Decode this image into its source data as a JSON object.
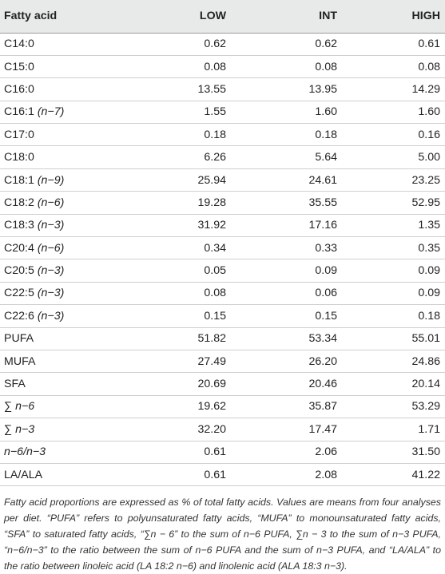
{
  "table": {
    "headers": [
      "Fatty acid",
      "LOW",
      "INT",
      "HIGH"
    ],
    "rows": [
      {
        "base": "C14:0",
        "suffix": "",
        "low": "0.62",
        "int": "0.62",
        "high": "0.61"
      },
      {
        "base": "C15:0",
        "suffix": "",
        "low": "0.08",
        "int": "0.08",
        "high": "0.08"
      },
      {
        "base": "C16:0",
        "suffix": "",
        "low": "13.55",
        "int": "13.95",
        "high": "14.29"
      },
      {
        "base": "C16:1 ",
        "suffix": "(n−7)",
        "low": "1.55",
        "int": "1.60",
        "high": "1.60"
      },
      {
        "base": "C17:0",
        "suffix": "",
        "low": "0.18",
        "int": "0.18",
        "high": "0.16"
      },
      {
        "base": "C18:0",
        "suffix": "",
        "low": "6.26",
        "int": "5.64",
        "high": "5.00"
      },
      {
        "base": "C18:1 ",
        "suffix": "(n−9)",
        "low": "25.94",
        "int": "24.61",
        "high": "23.25"
      },
      {
        "base": "C18:2 ",
        "suffix": "(n−6)",
        "low": "19.28",
        "int": "35.55",
        "high": "52.95"
      },
      {
        "base": "C18:3 ",
        "suffix": "(n−3)",
        "low": "31.92",
        "int": "17.16",
        "high": "1.35"
      },
      {
        "base": "C20:4 ",
        "suffix": "(n−6)",
        "low": "0.34",
        "int": "0.33",
        "high": "0.35"
      },
      {
        "base": "C20:5 ",
        "suffix": "(n−3)",
        "low": "0.05",
        "int": "0.09",
        "high": "0.09"
      },
      {
        "base": "C22:5 ",
        "suffix": "(n−3)",
        "low": "0.08",
        "int": "0.06",
        "high": "0.09"
      },
      {
        "base": "C22:6 ",
        "suffix": "(n−3)",
        "low": "0.15",
        "int": "0.15",
        "high": "0.18"
      },
      {
        "base": "PUFA",
        "suffix": "",
        "low": "51.82",
        "int": "53.34",
        "high": "55.01"
      },
      {
        "base": "MUFA",
        "suffix": "",
        "low": "27.49",
        "int": "26.20",
        "high": "24.86"
      },
      {
        "base": "SFA",
        "suffix": "",
        "low": "20.69",
        "int": "20.46",
        "high": "20.14"
      },
      {
        "base": "∑ ",
        "suffix": "n−6",
        "low": "19.62",
        "int": "35.87",
        "high": "53.29"
      },
      {
        "base": "∑ ",
        "suffix": "n−3",
        "low": "32.20",
        "int": "17.47",
        "high": "1.71"
      },
      {
        "base": "",
        "suffix": "n−6/n−3",
        "low": "0.61",
        "int": "2.06",
        "high": "31.50"
      },
      {
        "base": "LA/ALA",
        "suffix": "",
        "low": "0.61",
        "int": "2.08",
        "high": "41.22"
      }
    ]
  },
  "footnote": "Fatty acid proportions are expressed as % of total fatty acids. Values are means from four analyses per diet. “PUFA” refers to polyunsaturated fatty acids, “MUFA” to monounsaturated fatty acids, “SFA” to saturated fatty acids, “∑n − 6” to the sum of n−6 PUFA, ∑n − 3 to the sum of n−3 PUFA, “n−6/n−3” to the ratio between the sum of n−6 PUFA and the sum of n−3 PUFA, and “LA/ALA” to the ratio between linoleic acid (LA 18:2 n−6) and linolenic acid (ALA 18:3 n−3)."
}
